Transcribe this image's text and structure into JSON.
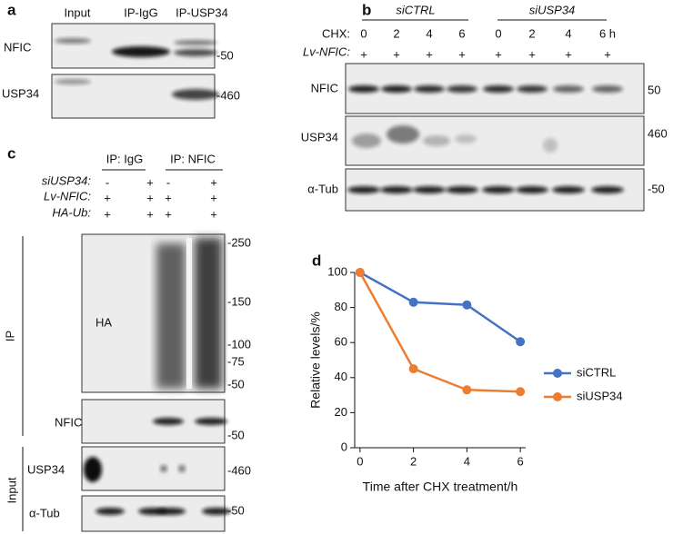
{
  "panel_a": {
    "label": "a",
    "lanes": [
      "Input",
      "IP-IgG",
      "IP-USP34"
    ],
    "rows": [
      {
        "name": "NFIC",
        "marker": "-50"
      },
      {
        "name": "USP34",
        "marker": "-460"
      }
    ]
  },
  "panel_b": {
    "label": "b",
    "groups": [
      "siCTRL",
      "siUSP34"
    ],
    "chx_label": "CHX:",
    "times": [
      "0",
      "2",
      "4",
      "6",
      "0",
      "2",
      "4",
      "6 h"
    ],
    "nfic_label": "Lv-NFIC:",
    "nfic": [
      "+",
      "+",
      "+",
      "+",
      "+",
      "+",
      "+",
      "+"
    ],
    "rows": [
      {
        "name": "NFIC",
        "marker": "50"
      },
      {
        "name": "USP34",
        "marker": "460"
      },
      {
        "name": "α-Tub",
        "marker": "-50"
      }
    ]
  },
  "panel_c": {
    "label": "c",
    "groups": [
      "IP: IgG",
      "IP: NFIC"
    ],
    "conditions": [
      {
        "name": "siUSP34:",
        "values": [
          "-",
          "+",
          "-",
          "+"
        ]
      },
      {
        "name": "Lv-NFIC:",
        "values": [
          "+",
          "+",
          "+",
          "+"
        ]
      },
      {
        "name": "HA-Ub:",
        "values": [
          "+",
          "+",
          "+",
          "+"
        ]
      }
    ],
    "side_labels": [
      "IP",
      "Input"
    ],
    "rows": [
      {
        "name": "HA",
        "markers": [
          "-250",
          "-150",
          "-100",
          "-75",
          "-50"
        ]
      },
      {
        "name": "NFIC",
        "markers": [
          "-50"
        ]
      },
      {
        "name": "USP34",
        "markers": [
          "-460"
        ]
      },
      {
        "name": "α-Tub",
        "markers": [
          "-50"
        ]
      }
    ]
  },
  "panel_d": {
    "label": "d"
  },
  "chart_data": {
    "type": "line",
    "xlabel": "Time after CHX treatment/h",
    "ylabel": "Relative levels/%",
    "x": [
      0,
      2,
      4,
      6
    ],
    "series": [
      {
        "name": "siCTRL",
        "color": "#4472c4",
        "values": [
          100,
          83,
          81.5,
          60.5
        ]
      },
      {
        "name": "siUSP34",
        "color": "#ed7d31",
        "values": [
          100,
          45,
          33,
          32
        ]
      }
    ],
    "xlim": [
      -0.2,
      6.2
    ],
    "xticks": [
      0,
      2,
      4,
      6
    ],
    "ylim": [
      0,
      100
    ],
    "yticks": [
      0,
      20,
      40,
      60,
      80,
      100
    ],
    "legend": "right"
  }
}
